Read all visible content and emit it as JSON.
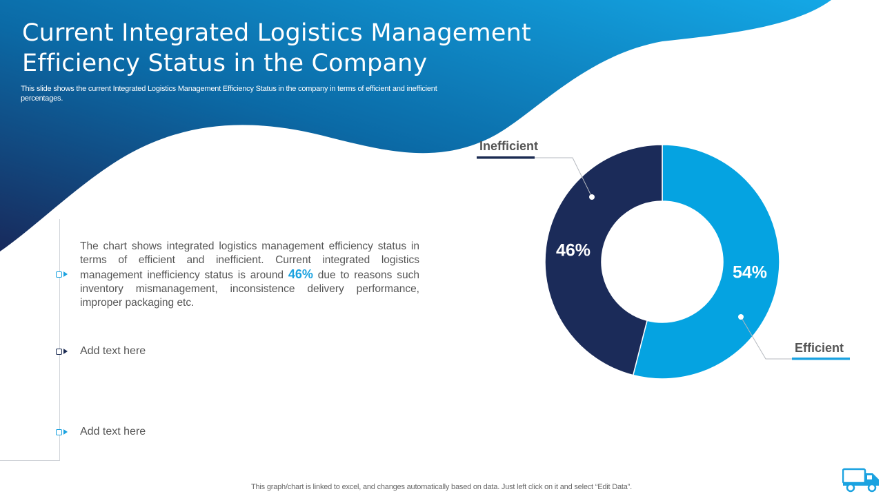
{
  "header": {
    "title_line1": "Current Integrated Logistics Management",
    "title_line2": "Efficiency Status in the Company",
    "subtitle": "This slide shows the current Integrated Logistics Management Efficiency Status in the company in terms of efficient and inefficient percentages."
  },
  "points": [
    {
      "before": "The chart shows integrated logistics management efficiency status in terms of efficient and inefficient. Current integrated logistics management inefficiency status is around ",
      "highlight": "46%",
      "after": " due to reasons such inventory mismanagement, inconsistence delivery performance, improper packaging etc."
    },
    {
      "text": "Add text here"
    },
    {
      "text": "Add text here"
    }
  ],
  "chart_data": {
    "type": "pie",
    "variant": "donut",
    "series": [
      {
        "name": "Efficient",
        "value": 54,
        "label": "54%",
        "color": "#05a3e1"
      },
      {
        "name": "Inefficient",
        "value": 46,
        "label": "46%",
        "color": "#1b2b59"
      }
    ]
  },
  "colors": {
    "accent": "#1aa2e0",
    "navy": "#1b2b52",
    "text": "#555555"
  },
  "footer": {
    "note": "This graph/chart is linked to excel,  and changes automatically based on data. Just left click on it and select “Edit Data”."
  },
  "icons": {
    "corner": "delivery-truck-icon"
  }
}
